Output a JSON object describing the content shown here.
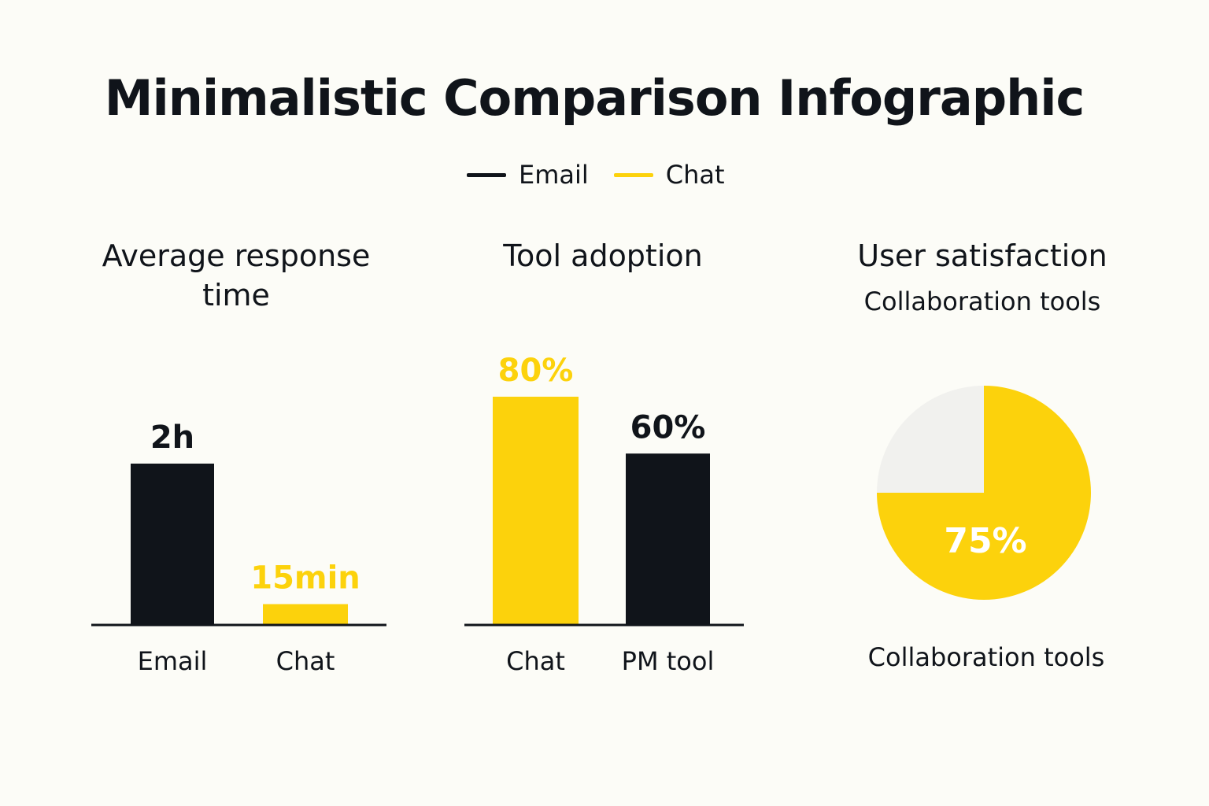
{
  "title": "Minimalistic Comparison Infographic",
  "legend": {
    "items": [
      {
        "label": "Email",
        "color": "#10141a"
      },
      {
        "label": "Chat",
        "color": "#fcd20c"
      }
    ]
  },
  "colors": {
    "dark": "#10141a",
    "accent": "#fcd20c",
    "pie_rest": "#f1f1ee",
    "axis": "#10141a"
  },
  "chart_data": [
    {
      "type": "bar",
      "title": "Average response time",
      "categories": [
        "Email",
        "Chat"
      ],
      "values": [
        120,
        15
      ],
      "unit": "minutes",
      "data_labels": [
        "2h",
        "15min"
      ],
      "bar_colors": [
        "#10141a",
        "#fcd20c"
      ],
      "label_colors": [
        "#10141a",
        "#fcd20c"
      ],
      "ylim": [
        0,
        120
      ],
      "grid": false
    },
    {
      "type": "bar",
      "title": "Tool adoption",
      "categories": [
        "Chat",
        "PM tool"
      ],
      "values": [
        80,
        60
      ],
      "unit": "%",
      "data_labels": [
        "80%",
        "60%"
      ],
      "bar_colors": [
        "#fcd20c",
        "#10141a"
      ],
      "label_colors": [
        "#fcd20c",
        "#10141a"
      ],
      "ylim": [
        0,
        80
      ],
      "grid": false
    },
    {
      "type": "pie",
      "title": "User satisfaction",
      "subtitle": "Collaboration tools",
      "caption": "Collaboration tools",
      "slices": [
        {
          "value": 75,
          "label": "75%",
          "color": "#fcd20c"
        },
        {
          "value": 25,
          "label": "",
          "color": "#f1f1ee"
        }
      ]
    }
  ]
}
